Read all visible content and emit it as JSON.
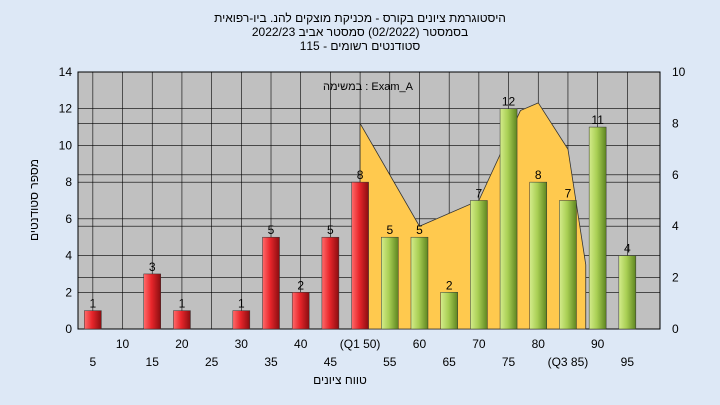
{
  "chart_data": {
    "type": "bar",
    "title_lines": [
      "היסטוגרמת ציונים בקורס - מכניקת מוצקים להנ. ביו-רפואית",
      "בסמסטר  (02/2022)  סמסטר אביב 2022/23",
      "סטודנטים רשומים - 115"
    ],
    "annotation": "במשימה : Exam_A",
    "xlabel": "טווח ציונים",
    "ylabel": "מספר סטודנטים",
    "ylim": [
      0,
      14
    ],
    "yticks": [
      0,
      2,
      4,
      6,
      8,
      10,
      12,
      14
    ],
    "y2lim": [
      0,
      10
    ],
    "y2ticks": [
      0,
      2,
      4,
      6,
      8,
      10
    ],
    "categories": [
      5,
      10,
      15,
      20,
      25,
      30,
      35,
      40,
      45,
      50,
      55,
      60,
      65,
      70,
      75,
      80,
      85,
      90,
      95
    ],
    "x_tick_labels": [
      "5",
      "10",
      "15",
      "20",
      "25",
      "30",
      "35",
      "40",
      "45",
      "(Q1 50)",
      "55",
      "60",
      "65",
      "70",
      "75",
      "80",
      "(Q3 85)",
      "90",
      "95"
    ],
    "values": [
      1,
      0,
      3,
      1,
      0,
      1,
      5,
      2,
      5,
      8,
      5,
      5,
      2,
      7,
      12,
      8,
      7,
      11,
      4
    ],
    "bar_colors": [
      "red",
      "red",
      "red",
      "red",
      "red",
      "red",
      "red",
      "red",
      "red",
      "red",
      "green",
      "green",
      "green",
      "green",
      "green",
      "green",
      "green",
      "green",
      "green"
    ],
    "area_series": {
      "x": [
        50,
        60,
        70,
        77,
        80,
        85,
        88
      ],
      "values": [
        8,
        4,
        5,
        8.5,
        8.8,
        7,
        2.5
      ]
    },
    "colors": {
      "background": "#dde8f6",
      "plot_bg": "#c0c0c0",
      "red_bar": "#e8262b",
      "green_bar": "#a9cf54",
      "area_fill": "#ffc94e"
    },
    "grid": true
  }
}
